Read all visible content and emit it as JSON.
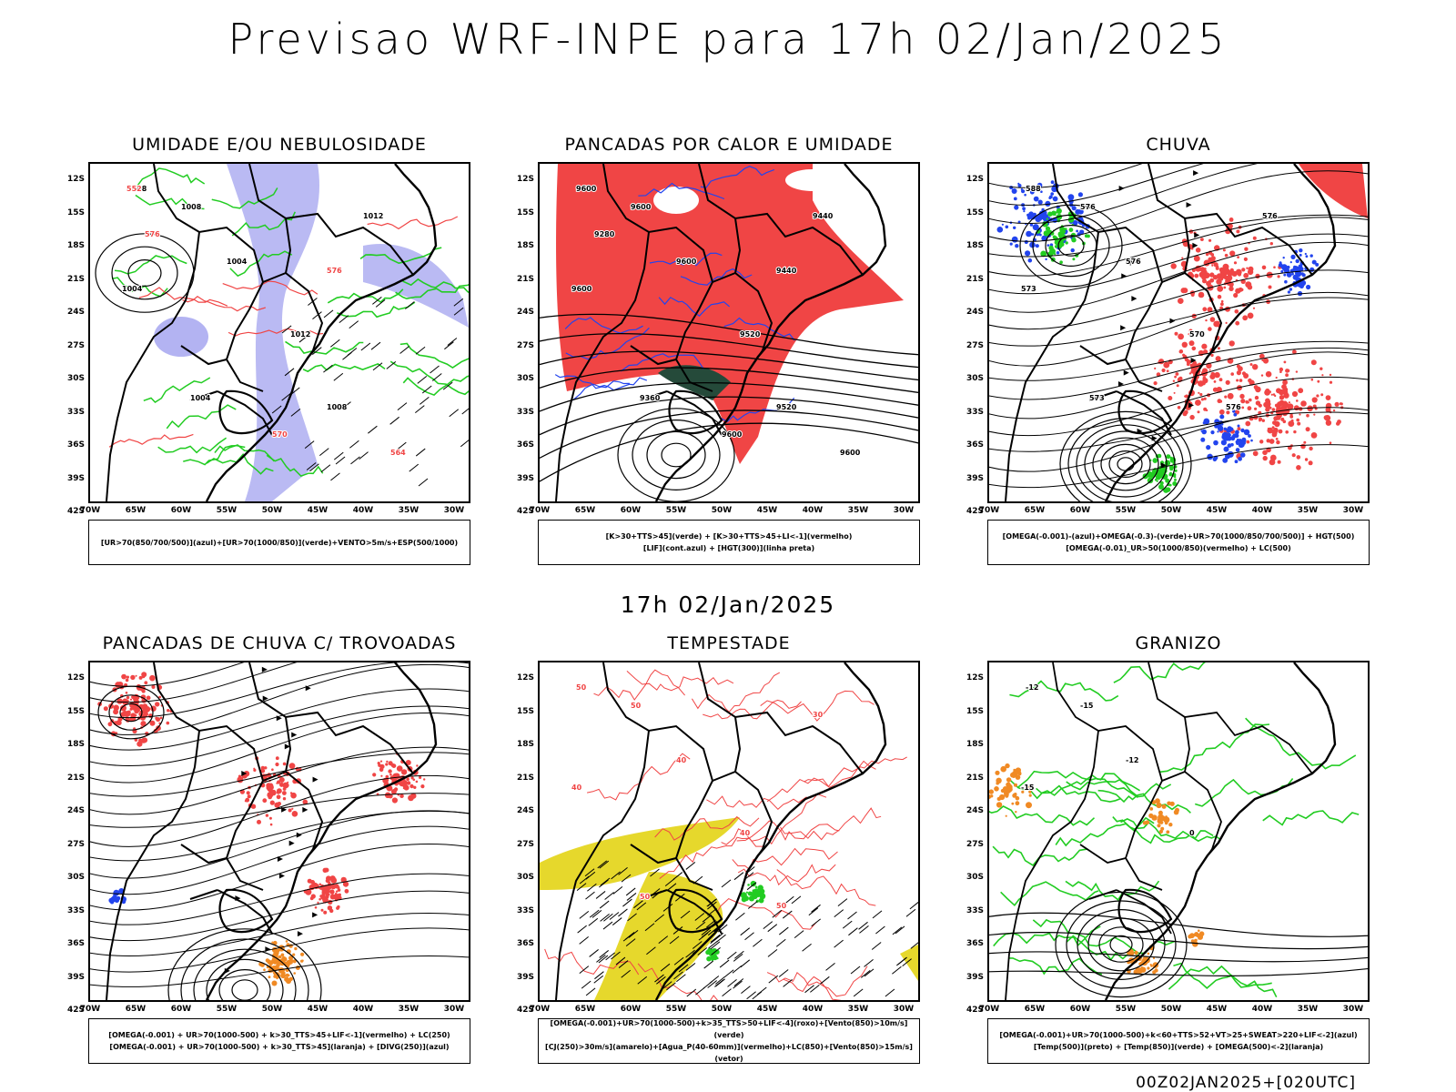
{
  "header": {
    "title": "Previsao WRF-INPE  para 17h 02/Jan/2025",
    "subtitle": "17h 02/Jan/2025"
  },
  "footer": {
    "stamp": "00Z02JAN2025+[020UTC]"
  },
  "axes": {
    "y_labels": [
      "12S",
      "15S",
      "18S",
      "21S",
      "24S",
      "27S",
      "30S",
      "33S",
      "36S",
      "39S",
      "42S"
    ],
    "x_labels": [
      "70W",
      "65W",
      "60W",
      "55W",
      "50W",
      "45W",
      "40W",
      "35W",
      "30W"
    ]
  },
  "colors": {
    "red": "#f04545",
    "green": "#22cc22",
    "blue": "#2244ee",
    "lavender": "#b3b3f2",
    "yellow": "#e6d82c",
    "dark_green": "#254a3a",
    "orange": "#f08a24"
  },
  "panels": [
    {
      "title": "UMIDADE E/OU NEBULOSIDADE",
      "legend": [
        "[UR>70(850/700/500)](azul)+[UR>70(1000/850)](verde)+VENTO>5m/s+ESP(500/1000)"
      ],
      "labels": [
        {
          "t": "1008",
          "c": "#000"
        },
        {
          "t": "1008",
          "c": "#000"
        },
        {
          "t": "1004",
          "c": "#000"
        },
        {
          "t": "1004",
          "c": "#000"
        },
        {
          "t": "1012",
          "c": "#000"
        },
        {
          "t": "1008",
          "c": "#000"
        },
        {
          "t": "1012",
          "c": "#000"
        },
        {
          "t": "1004",
          "c": "#000"
        },
        {
          "t": "576",
          "c": "#f04545"
        },
        {
          "t": "576",
          "c": "#f04545"
        },
        {
          "t": "570",
          "c": "#f04545"
        },
        {
          "t": "564",
          "c": "#f04545"
        },
        {
          "t": "552",
          "c": "#f04545"
        }
      ]
    },
    {
      "title": "PANCADAS POR CALOR E UMIDADE",
      "legend": [
        "[K>30+TTS>45](verde) + [K>30+TTS>45+LI<-1](vermelho)",
        "[LIF](cont.azul) + [HGT(300)](linha preta)"
      ],
      "labels": [
        {
          "t": "9600",
          "c": "#000"
        },
        {
          "t": "9600",
          "c": "#000"
        },
        {
          "t": "9600",
          "c": "#000"
        },
        {
          "t": "9600",
          "c": "#000"
        },
        {
          "t": "9520",
          "c": "#000"
        },
        {
          "t": "9520",
          "c": "#000"
        },
        {
          "t": "9440",
          "c": "#000"
        },
        {
          "t": "9360",
          "c": "#000"
        },
        {
          "t": "9280",
          "c": "#000"
        },
        {
          "t": "9440",
          "c": "#000"
        },
        {
          "t": "9600",
          "c": "#000"
        },
        {
          "t": "9600",
          "c": "#000"
        }
      ]
    },
    {
      "title": "CHUVA",
      "legend": [
        "[OMEGA(-0.001)-(azul)+OMEGA(-0.3)-(verde)+UR>70(1000/850/700/500)] + HGT(500)",
        "[OMEGA(-0.01)_UR>50(1000/850)(vermelho) + LC(500)"
      ],
      "labels": [
        {
          "t": "588",
          "c": "#000"
        },
        {
          "t": "576",
          "c": "#000"
        },
        {
          "t": "576",
          "c": "#000"
        },
        {
          "t": "573",
          "c": "#000"
        },
        {
          "t": "570",
          "c": "#000"
        },
        {
          "t": "576",
          "c": "#000"
        },
        {
          "t": "576",
          "c": "#000"
        },
        {
          "t": "573",
          "c": "#000"
        }
      ]
    },
    {
      "title": "PANCADAS DE CHUVA C/ TROVOADAS",
      "legend": [
        "[OMEGA(-0.001) + UR>70(1000-500) + k>30_TTS>45+LIF<-1](vermelho) + LC(250)",
        "[OMEGA(-0.001) + UR>70(1000-500) + k>30_TTS>45](laranja) + [DIVG(250)](azul)"
      ],
      "labels": []
    },
    {
      "title": "TEMPESTADE",
      "legend": [
        "[OMEGA(-0.001)+UR>70(1000-500)+k>35_TTS>50+LIF<-4](roxo)+[Vento(850)>10m/s](verde)",
        "[CJ(250)>30m/s](amarelo)+[Agua_P(40-60mm)](vermelho)+LC(850)+[Vento(850)>15m/s](vetor)"
      ],
      "labels": [
        {
          "t": "50",
          "c": "#f04545"
        },
        {
          "t": "50",
          "c": "#f04545"
        },
        {
          "t": "40",
          "c": "#f04545"
        },
        {
          "t": "40",
          "c": "#f04545"
        },
        {
          "t": "40",
          "c": "#f04545"
        },
        {
          "t": "50",
          "c": "#f04545"
        },
        {
          "t": "30",
          "c": "#f04545"
        },
        {
          "t": "50",
          "c": "#f04545"
        }
      ]
    },
    {
      "title": "GRANIZO",
      "legend": [
        "[OMEGA(-0.001)+UR>70(1000-500)+k<60+TTS>52+VT>25+SWEAT>220+LIF<-2](azul)",
        "[Temp(500)](preto) + [Temp(850)](verde) + [OMEGA(500)<-2](laranja)"
      ],
      "labels": [
        {
          "t": "-12",
          "c": "#000"
        },
        {
          "t": "-15",
          "c": "#000"
        },
        {
          "t": "-12",
          "c": "#000"
        },
        {
          "t": "-15",
          "c": "#000"
        },
        {
          "t": "0",
          "c": "#000"
        }
      ]
    }
  ]
}
